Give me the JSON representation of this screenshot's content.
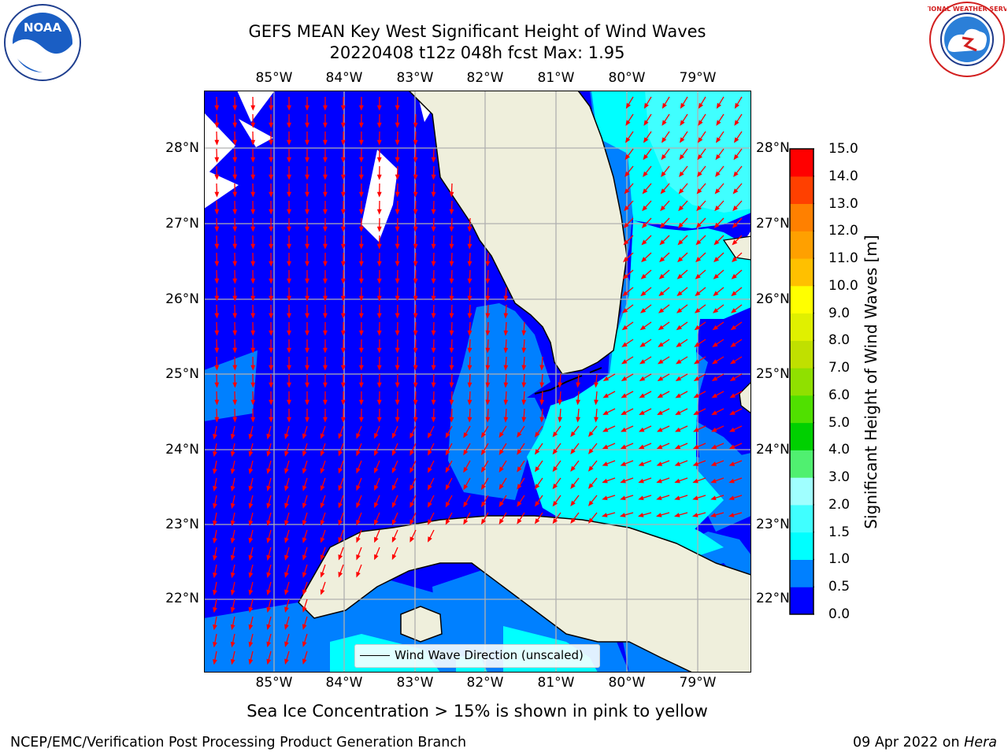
{
  "title": {
    "line1": "GEFS MEAN Key West Significant Height of Wind Waves",
    "line2": "20220408 t12z 048h fcst   Max: 1.95"
  },
  "axes": {
    "lon_labels": [
      "85°W",
      "84°W",
      "83°W",
      "82°W",
      "81°W",
      "80°W",
      "79°W"
    ],
    "lat_labels": [
      "28°N",
      "27°N",
      "26°N",
      "25°N",
      "24°N",
      "23°N",
      "22°N"
    ],
    "grid": true
  },
  "colorbar": {
    "title": "Significant Height of Wind Waves [m]",
    "tick_labels": [
      "15.0",
      "14.0",
      "13.0",
      "12.0",
      "11.0",
      "10.0",
      "9.0",
      "8.0",
      "7.0",
      "6.0",
      "5.0",
      "4.0",
      "3.0",
      "2.0",
      "1.5",
      "1.0",
      "0.5",
      "0.0"
    ],
    "colors_bottom_to_top": [
      "#0000ff",
      "#0080ff",
      "#00ffff",
      "#40ffff",
      "#a0ffff",
      "#50f070",
      "#00d000",
      "#50e000",
      "#90e000",
      "#c0e000",
      "#e0f000",
      "#ffff00",
      "#ffc000",
      "#ffa000",
      "#ff8000",
      "#ff4000",
      "#ff0000"
    ]
  },
  "legend": {
    "label": "Wind Wave Direction (unscaled)"
  },
  "footnote": "Sea Ice Concentration > 15% is shown in pink to yellow",
  "footer": {
    "left": "NCEP/EMC/Verification Post Processing Product Generation Branch",
    "date": "09 Apr 2022 on",
    "host": "Hera"
  },
  "logos": {
    "noaa_text": "NOAA",
    "nws_text": "NATIONAL WEATHER SERVICE"
  },
  "colors": {
    "land": "#efefdc",
    "arrow": "#ff0000",
    "grid": "#b0b0b0"
  }
}
